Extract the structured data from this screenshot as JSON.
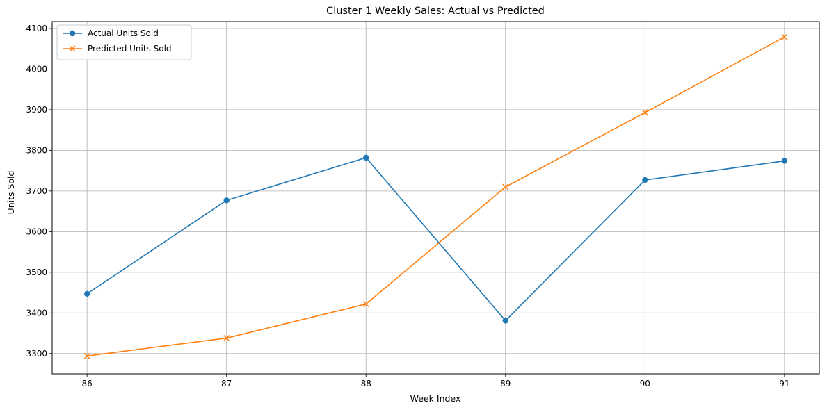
{
  "chart_data": {
    "type": "line",
    "title": "Cluster 1 Weekly Sales: Actual vs Predicted",
    "xlabel": "Week Index",
    "ylabel": "Units Sold",
    "x": [
      86,
      87,
      88,
      89,
      90,
      91
    ],
    "xlim": [
      85.75,
      91.25
    ],
    "ylim": [
      3250,
      4117
    ],
    "yticks": [
      3300,
      3400,
      3500,
      3600,
      3700,
      3800,
      3900,
      4000,
      4100
    ],
    "grid": true,
    "legend_position": "top-left",
    "series": [
      {
        "name": "Actual Units Sold",
        "color": "#1f77b4",
        "marker": "circle",
        "values": [
          3447,
          3677,
          3782,
          3381,
          3727,
          3774
        ]
      },
      {
        "name": "Predicted Units Sold",
        "color": "#ff7f0e",
        "marker": "x",
        "values": [
          3294,
          3338,
          3422,
          3710,
          3893,
          4079
        ]
      }
    ]
  }
}
